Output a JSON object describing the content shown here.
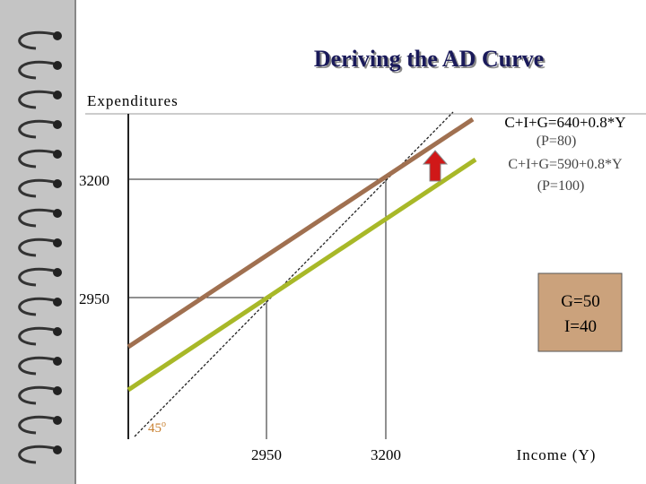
{
  "title": "Deriving the AD Curve",
  "y_axis_label": "Expenditures",
  "x_axis_label": "Income (Y)",
  "y_ticks": [
    "3200",
    "2950"
  ],
  "x_ticks": [
    "2950",
    "3200"
  ],
  "lines": [
    {
      "label": "C+I+G=640+0.8*Y",
      "sublabel": "(P=80)"
    },
    {
      "label": "C+I+G=590+0.8*Y",
      "sublabel": "(P=100)"
    }
  ],
  "angle": {
    "number": "45",
    "unit": "o"
  },
  "box": [
    "G=50",
    "I=40"
  ]
}
